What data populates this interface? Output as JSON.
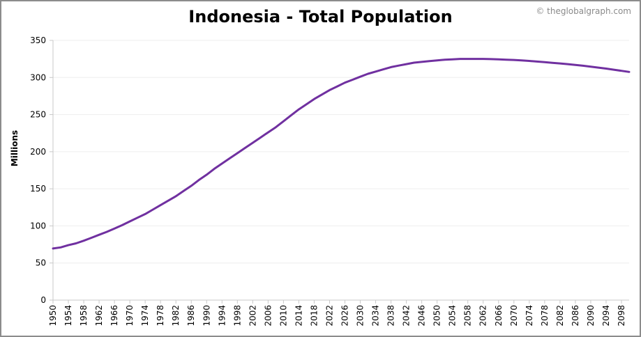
{
  "page": {
    "title": "Indonesia - Total Population",
    "credit": "© theglobalgraph.com"
  },
  "colors": {
    "line": "#7030a0",
    "grid": "#eeeeee",
    "axis": "#c8c8c8",
    "frame": "#8c8c8c"
  },
  "chart_data": {
    "type": "line",
    "title": "Indonesia - Total Population",
    "xlabel": "",
    "ylabel": "Millions",
    "ylim": [
      0,
      350
    ],
    "xlim": [
      1950,
      2100
    ],
    "yticks": [
      0,
      50,
      100,
      150,
      200,
      250,
      300,
      350
    ],
    "xticks": [
      "1950",
      "1954",
      "1958",
      "1962",
      "1966",
      "1970",
      "1974",
      "1978",
      "1982",
      "1986",
      "1990",
      "1994",
      "1998",
      "2002",
      "2006",
      "2010",
      "2014",
      "2018",
      "2022",
      "2026",
      "2030",
      "2034",
      "2038",
      "2042",
      "2046",
      "2050",
      "2054",
      "2058",
      "2062",
      "2066",
      "2070",
      "2074",
      "2078",
      "2082",
      "2086",
      "2090",
      "2094",
      "2098"
    ],
    "grid": true,
    "legend": "none",
    "series": [
      {
        "x": [
          1950,
          1952,
          1954,
          1956,
          1958,
          1960,
          1962,
          1964,
          1966,
          1968,
          1970,
          1972,
          1974,
          1976,
          1978,
          1980,
          1982,
          1984,
          1986,
          1988,
          1990,
          1992,
          1994,
          1996,
          1998,
          2000,
          2002,
          2004,
          2006,
          2008,
          2010,
          2012,
          2014,
          2016,
          2018,
          2020,
          2022,
          2024,
          2026,
          2028,
          2030,
          2032,
          2034,
          2036,
          2038,
          2040,
          2042,
          2044,
          2046,
          2048,
          2050,
          2052,
          2054,
          2056,
          2058,
          2060,
          2062,
          2064,
          2066,
          2068,
          2070,
          2072,
          2074,
          2076,
          2078,
          2080,
          2082,
          2084,
          2086,
          2088,
          2090,
          2092,
          2094,
          2096,
          2098,
          2100
        ],
        "values": [
          69.5,
          71,
          74,
          76.5,
          80,
          84,
          88,
          92,
          96.5,
          101,
          106,
          111,
          116,
          122,
          128,
          134,
          140,
          147,
          154,
          162,
          169,
          177,
          184,
          191,
          198,
          205,
          212,
          219,
          226,
          233,
          241,
          249,
          257,
          264,
          271,
          277,
          283,
          288,
          293,
          297,
          301,
          305,
          308,
          311,
          314,
          316,
          318,
          320,
          321,
          322,
          323,
          324,
          324.5,
          325,
          325,
          325,
          325,
          324.8,
          324.5,
          324,
          323.6,
          323,
          322.3,
          321.5,
          320.7,
          319.8,
          318.9,
          318,
          317,
          315.8,
          314.6,
          313.3,
          312,
          310.5,
          309,
          307.5
        ]
      }
    ]
  }
}
